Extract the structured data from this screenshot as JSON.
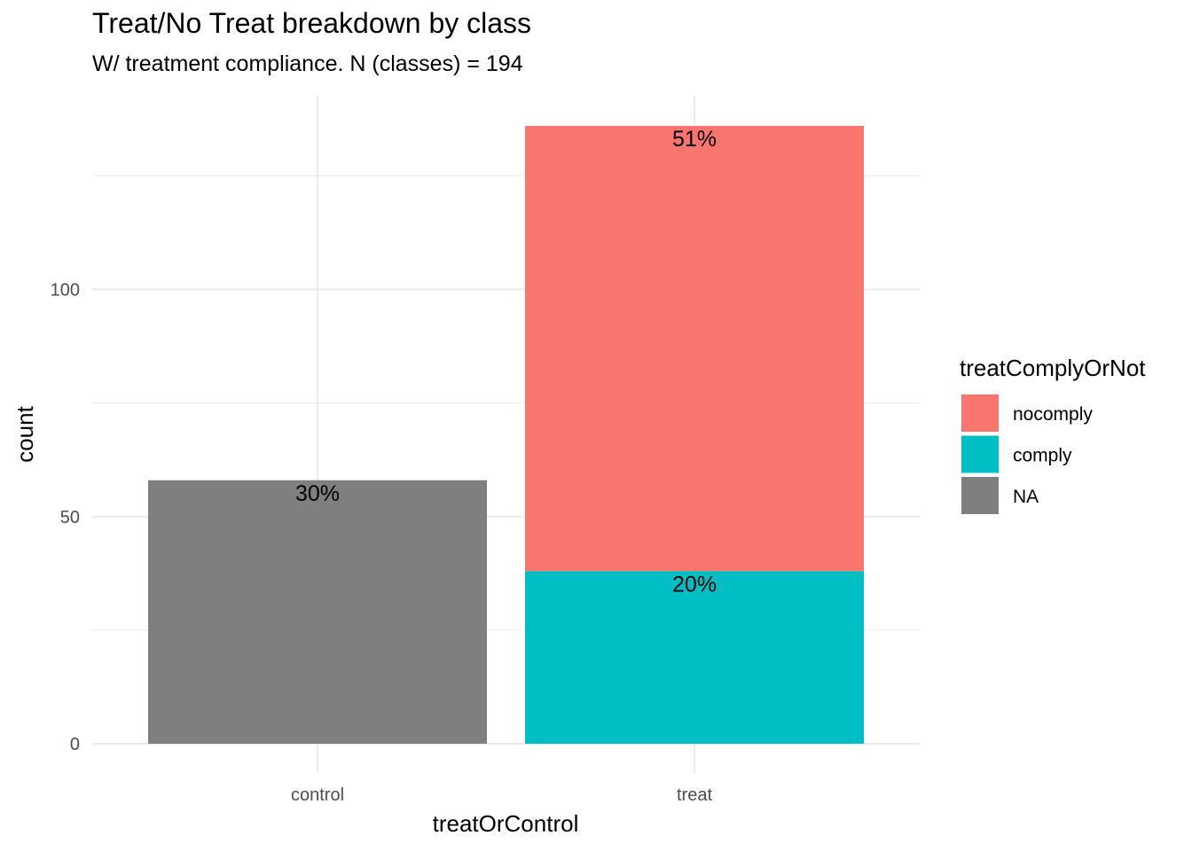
{
  "chart_data": {
    "type": "bar",
    "stacked": true,
    "title": "Treat/No Treat breakdown by class",
    "subtitle": "W/ treatment compliance. N (classes) = 194",
    "xlabel": "treatOrControl",
    "ylabel": "count",
    "categories": [
      "control",
      "treat"
    ],
    "ylim": [
      0,
      136
    ],
    "yticks": [
      0,
      50,
      100
    ],
    "grid": true,
    "legend": {
      "title": "treatComplyOrNot",
      "position": "right",
      "entries": [
        {
          "label": "nocomply",
          "color": "#F8766D"
        },
        {
          "label": "comply",
          "color": "#00BFC4"
        },
        {
          "label": "NA",
          "color": "#7F7F7F"
        }
      ]
    },
    "series": [
      {
        "name": "comply",
        "color": "#00BFC4",
        "values": [
          0,
          38
        ],
        "labels": [
          "",
          "20%"
        ]
      },
      {
        "name": "nocomply",
        "color": "#F8766D",
        "values": [
          0,
          98
        ],
        "labels": [
          "",
          "51%"
        ]
      },
      {
        "name": "NA",
        "color": "#7F7F7F",
        "values": [
          58,
          0
        ],
        "labels": [
          "30%",
          ""
        ]
      }
    ]
  }
}
